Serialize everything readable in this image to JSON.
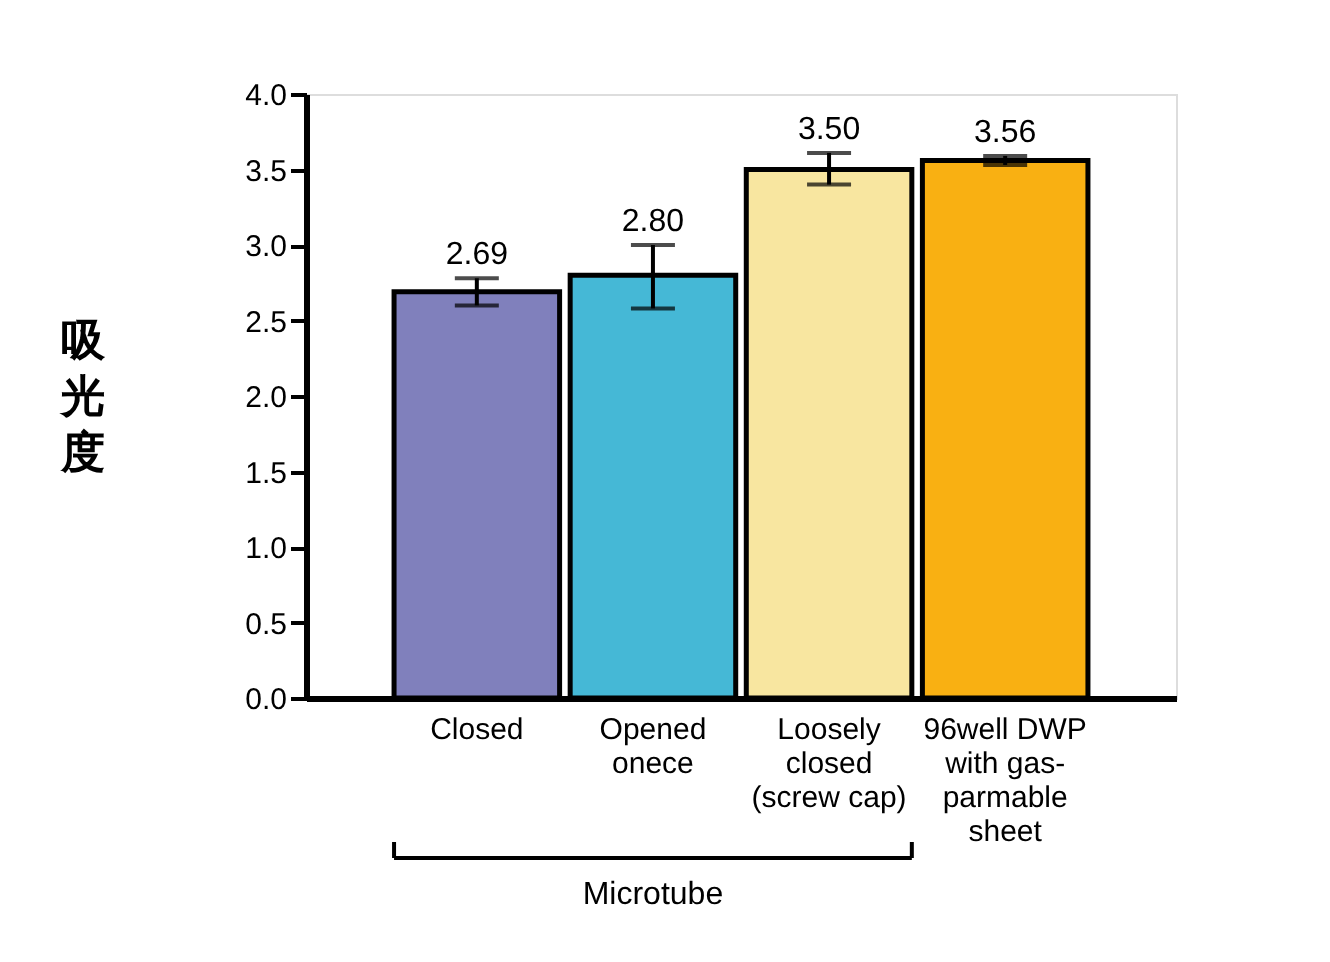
{
  "chart_data": {
    "type": "bar",
    "ylabel": "吸光度",
    "categories": [
      "Closed",
      "Opened\nonece",
      "Loosely\nclosed\n(screw cap)",
      "96well DWP\nwith gas-\nparmable\nsheet"
    ],
    "values": [
      2.69,
      2.8,
      3.5,
      3.56
    ],
    "colors": [
      "#8080bc",
      "#45b8d6",
      "#f8e6a0",
      "#f9b012"
    ],
    "errors": [
      [
        2.6,
        2.78
      ],
      [
        2.58,
        3.0
      ],
      [
        3.4,
        3.61
      ],
      [
        3.53,
        3.59
      ]
    ],
    "value_labels": [
      "2.69",
      "2.80",
      "3.50",
      "3.56"
    ],
    "ylim": [
      0,
      4
    ],
    "yticks": [
      {
        "value": 0,
        "label": "0.0"
      },
      0.5,
      {
        "value": 1,
        "label": "1.0"
      },
      1.5,
      {
        "value": 2,
        "label": "2.0"
      },
      2.5,
      {
        "value": 3,
        "label": "3.0"
      },
      3.5,
      {
        "value": 4,
        "label": "4.0"
      }
    ],
    "grid": false,
    "annotations": [
      "Microtube"
    ]
  }
}
